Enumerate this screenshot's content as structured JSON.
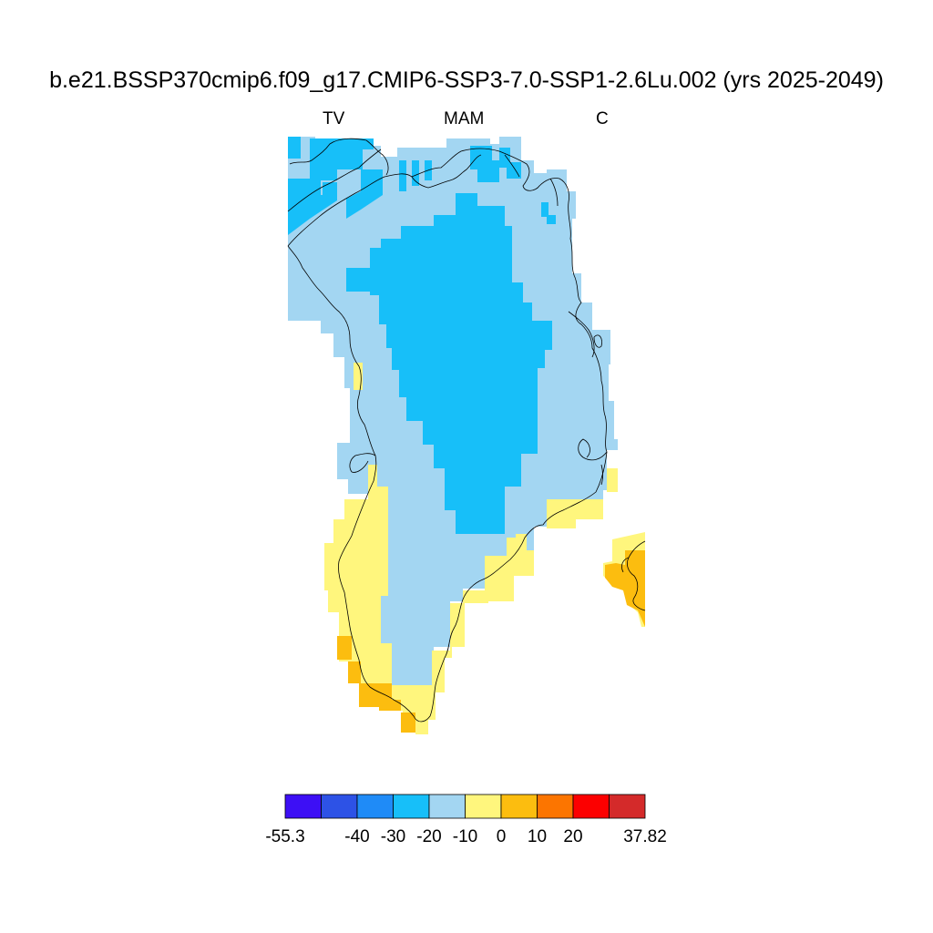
{
  "title": "b.e21.BSSP370cmip6.f09_g17.CMIP6-SSP3-7.0-SSP1-2.6Lu.002 (yrs 2025-2049)",
  "subtitles": {
    "left": "TV",
    "center": "MAM",
    "right": "C"
  },
  "colorbar": {
    "colors": [
      "#3d0ff5",
      "#2d52e6",
      "#1f8bf7",
      "#17bff9",
      "#a3d6f2",
      "#fff67d",
      "#fcbd0f",
      "#fc7500",
      "#fc0000",
      "#d42a2a"
    ],
    "labels": [
      "-55.3",
      "-40",
      "-30",
      "-20",
      "-10",
      "0",
      "10",
      "20",
      "37.82"
    ],
    "levels": [
      -55.3,
      -40,
      -30,
      -20,
      -10,
      0,
      10,
      20,
      30,
      37.82
    ]
  },
  "map_colors": {
    "ice_interior": "#17bff9",
    "outer_negative": "#a3d6f2",
    "slight_positive": "#fff67d",
    "positive": "#fcbd0f",
    "coastline": "#000000"
  }
}
